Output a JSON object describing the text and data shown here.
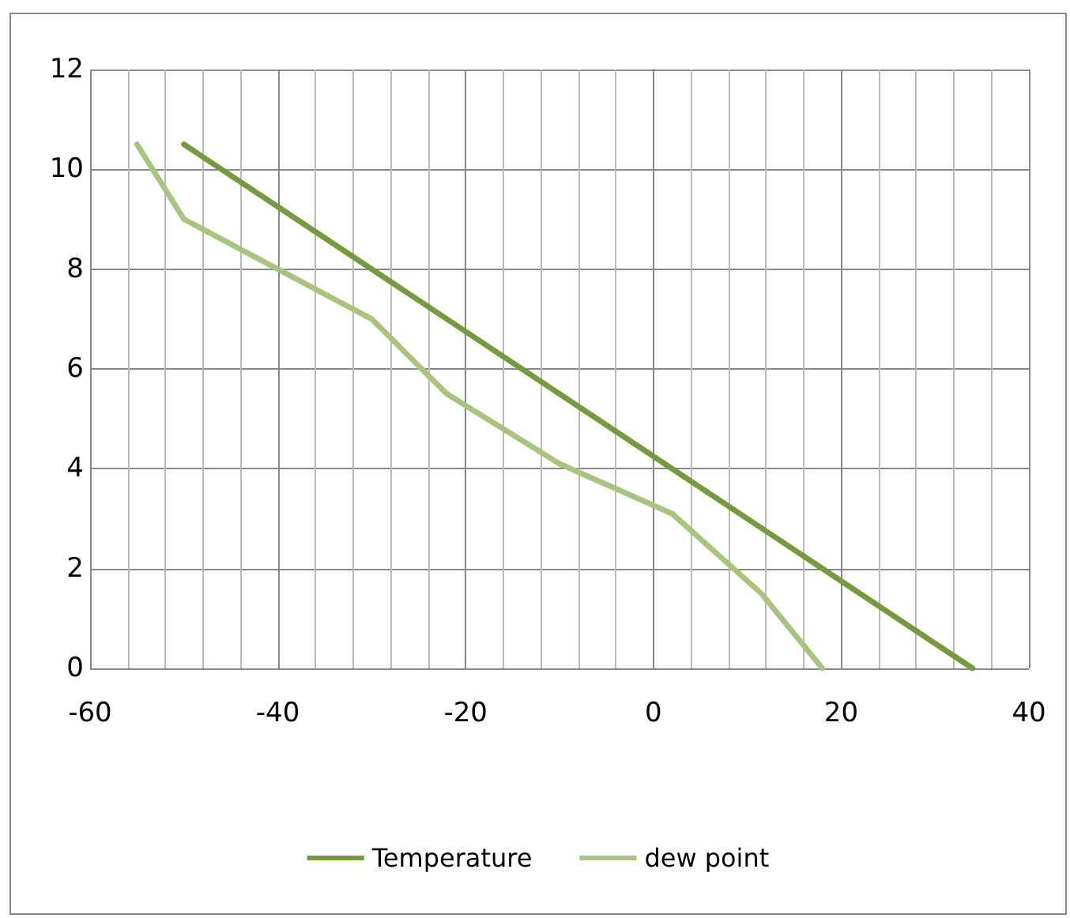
{
  "chart_data": {
    "type": "line",
    "xlim": [
      -60,
      40
    ],
    "xticks": [
      -60,
      -40,
      -20,
      0,
      20,
      40
    ],
    "ylim": [
      0,
      12
    ],
    "yticks": [
      0,
      2,
      4,
      6,
      8,
      10,
      12
    ],
    "grid": true,
    "legend": "bottom",
    "marker": "none",
    "series": [
      {
        "name": "Temperature",
        "color": "#77993f",
        "x": [
          -50,
          34
        ],
        "values": [
          10.5,
          0
        ]
      },
      {
        "name": "dew point",
        "color": "#a9c47f",
        "x": [
          -55,
          -50,
          -30,
          -22,
          -10,
          2,
          11.5,
          18
        ],
        "values": [
          10.5,
          9,
          7,
          5.5,
          4.1,
          3.1,
          1.5,
          0
        ]
      }
    ]
  }
}
